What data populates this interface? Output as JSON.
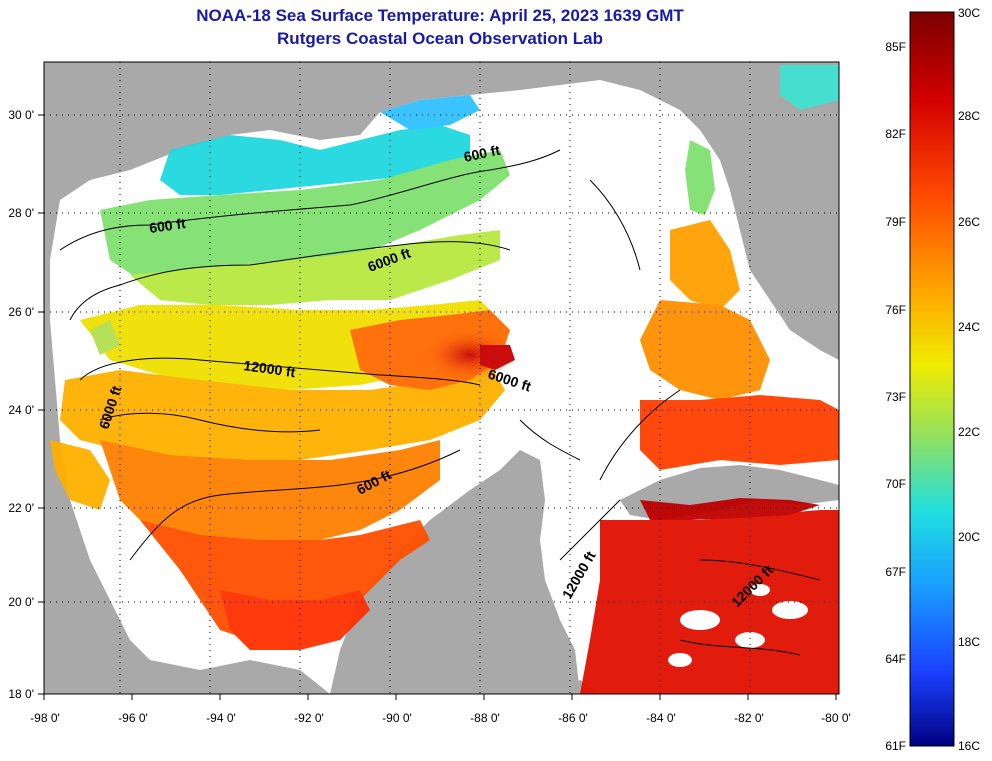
{
  "title": "NOAA-18 Sea Surface Temperature:  April 25, 2023 1639 GMT",
  "subtitle": "Rutgers Coastal Ocean Observation Lab",
  "map": {
    "lon_labels": [
      "-98 0'",
      "-96 0'",
      "-94 0'",
      "-92 0'",
      "-90 0'",
      "-88 0'",
      "-86 0'",
      "-84 0'",
      "-82 0'",
      "-80 0'"
    ],
    "lat_labels": [
      "30 0'",
      "28 0'",
      "26 0'",
      "24 0'",
      "22 0'",
      "20 0'",
      "18 0'"
    ],
    "contour_labels": [
      "600 ft",
      "600 ft",
      "6000 ft",
      "12000 ft",
      "6000 ft",
      "6000 ft",
      "600 ft",
      "12000 ft",
      "12000 ft"
    ],
    "colors": {
      "land": "#a9a9a9",
      "cloud": "#ffffff",
      "frame": "#000000"
    }
  },
  "colorbar": {
    "f_labels": [
      "85F",
      "82F",
      "79F",
      "76F",
      "73F",
      "70F",
      "67F",
      "64F",
      "61F"
    ],
    "c_labels": [
      "30C",
      "28C",
      "26C",
      "24C",
      "22C",
      "20C",
      "18C",
      "16C"
    ],
    "scale_colors": [
      "#7a0000",
      "#d40000",
      "#ff4a00",
      "#ffa500",
      "#f0ec00",
      "#90e060",
      "#20e0e0",
      "#1a9fff",
      "#1a40ff",
      "#000080"
    ]
  }
}
